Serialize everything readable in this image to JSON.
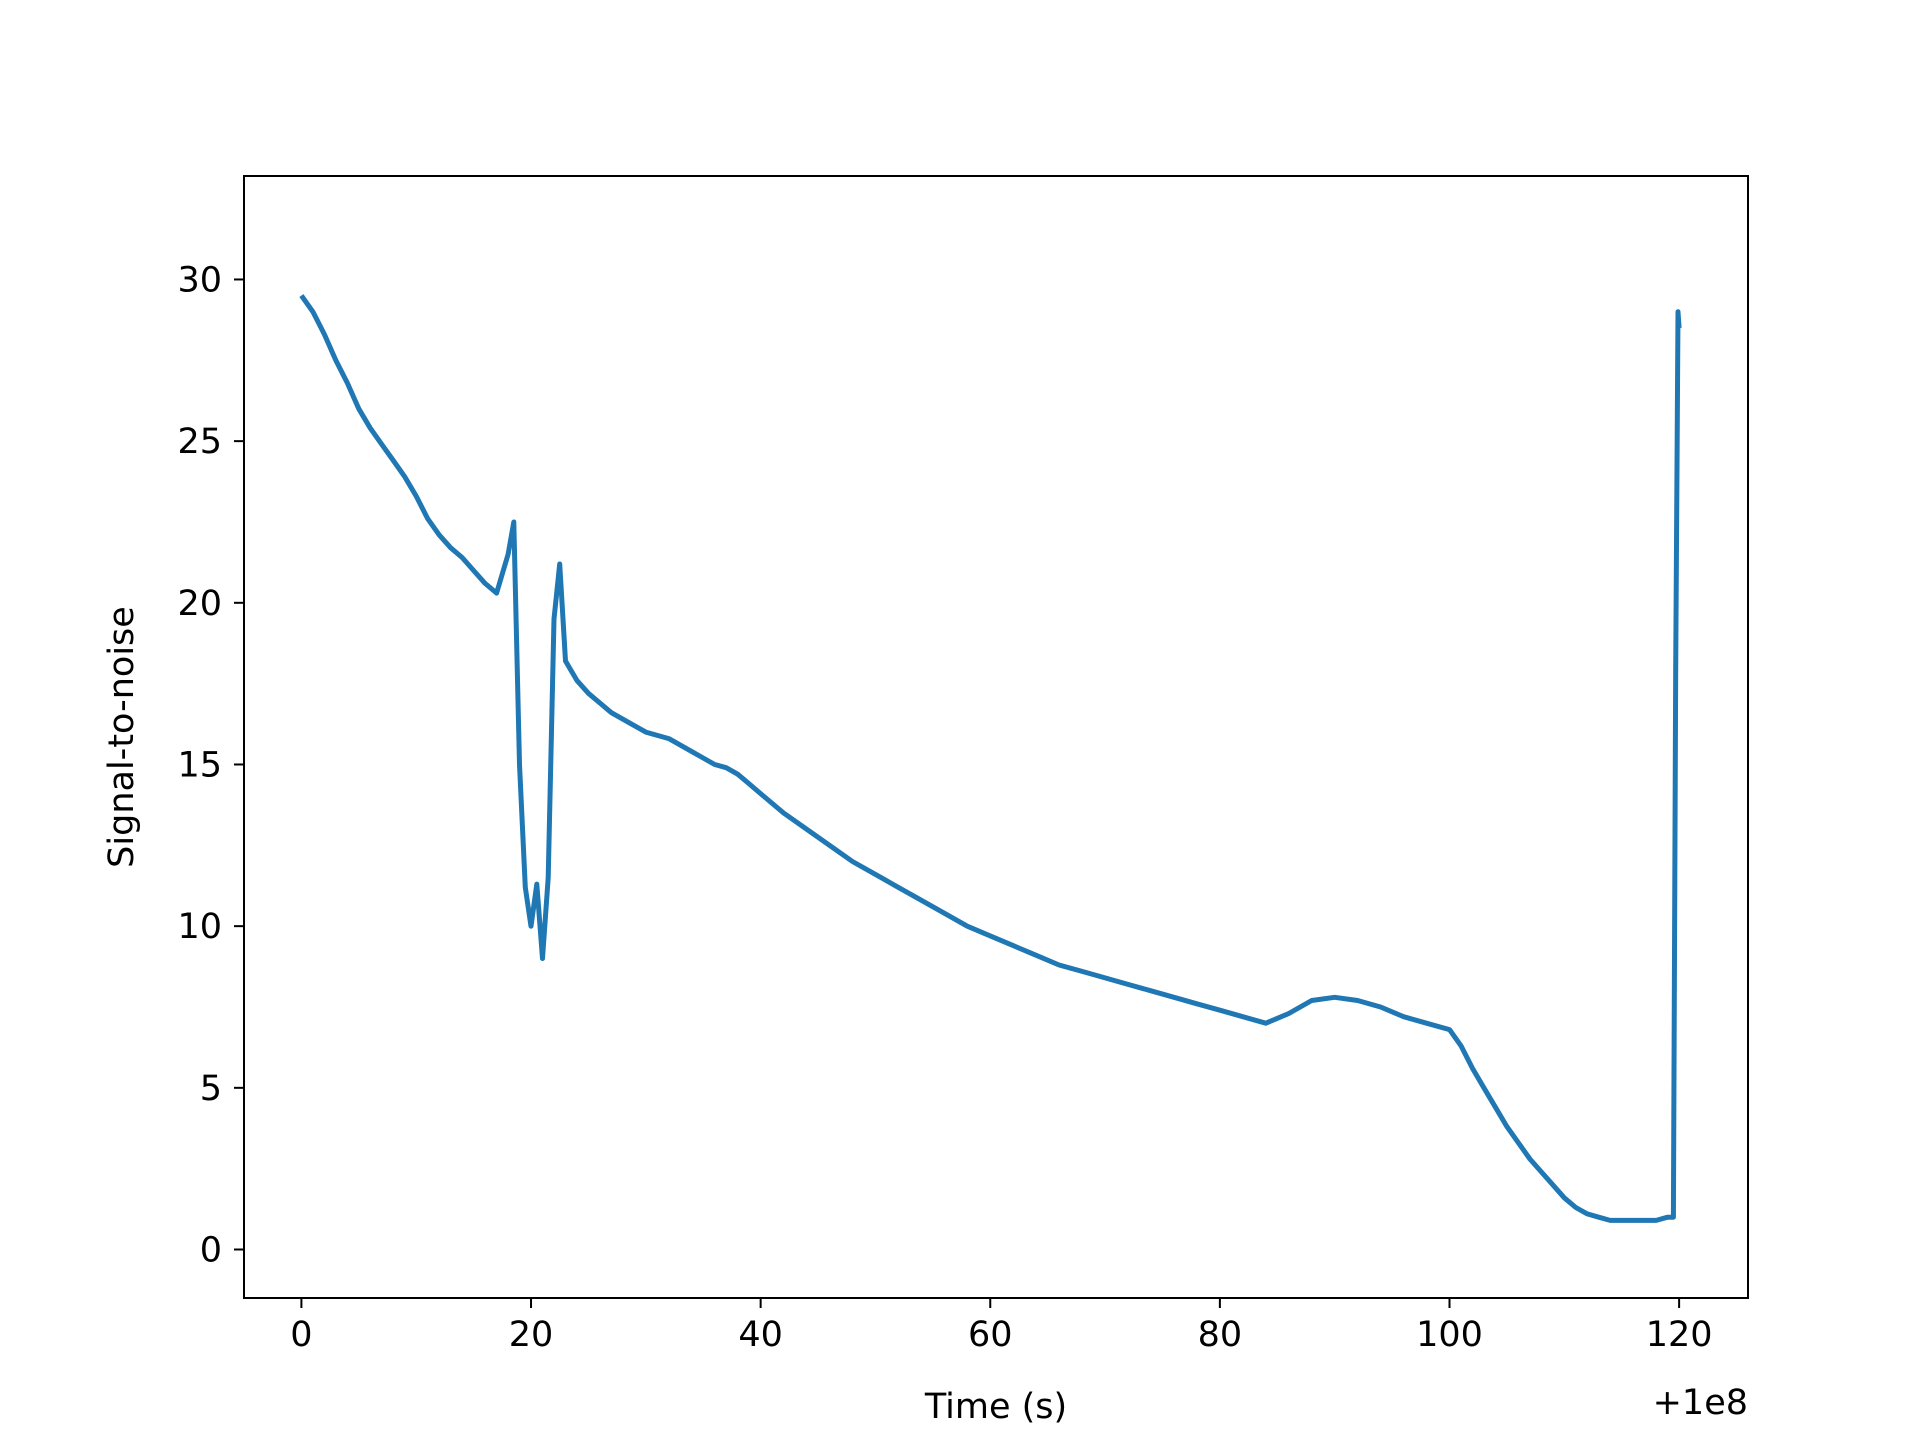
{
  "chart_data": {
    "type": "line",
    "title": "",
    "xlabel": "Time (s)",
    "ylabel": "Signal-to-noise",
    "x_offset_label": "+1e8",
    "xlim": [
      -5,
      126
    ],
    "ylim": [
      -1.5,
      33.2
    ],
    "x_ticks": [
      0,
      20,
      40,
      60,
      80,
      100,
      120
    ],
    "x_tick_labels": [
      "0",
      "20",
      "40",
      "60",
      "80",
      "100",
      "120"
    ],
    "y_ticks": [
      0,
      5,
      10,
      15,
      20,
      25,
      30
    ],
    "y_tick_labels": [
      "0",
      "5",
      "10",
      "15",
      "20",
      "25",
      "30"
    ],
    "grid": false,
    "legend": "none",
    "series": [
      {
        "color": "#1f77b4",
        "x": [
          0,
          1,
          2,
          3,
          4,
          5,
          6,
          7,
          8,
          9,
          10,
          11,
          12,
          13,
          14,
          15,
          16,
          17,
          18,
          18.5,
          19,
          19.5,
          20,
          20.5,
          21,
          21.5,
          22,
          22.5,
          23,
          24,
          25,
          26,
          27,
          28,
          29,
          30,
          31,
          32,
          33,
          34,
          35,
          36,
          37,
          38,
          39,
          40,
          42,
          44,
          46,
          48,
          50,
          52,
          54,
          56,
          58,
          60,
          62,
          64,
          66,
          68,
          70,
          72,
          74,
          76,
          78,
          80,
          82,
          84,
          86,
          88,
          90,
          92,
          94,
          96,
          98,
          100,
          101,
          102,
          103,
          104,
          105,
          106,
          107,
          108,
          109,
          110,
          111,
          112,
          113,
          114,
          115,
          116,
          117,
          118,
          119,
          119.5,
          119.7,
          119.9,
          120
        ],
        "y": [
          29.5,
          29.0,
          28.3,
          27.5,
          26.8,
          26.0,
          25.4,
          24.9,
          24.4,
          23.9,
          23.3,
          22.6,
          22.1,
          21.7,
          21.4,
          21.0,
          20.6,
          20.3,
          21.5,
          22.5,
          15.0,
          11.2,
          10.0,
          11.3,
          9.0,
          11.5,
          19.5,
          21.2,
          18.2,
          17.6,
          17.2,
          16.9,
          16.6,
          16.4,
          16.2,
          16.0,
          15.9,
          15.8,
          15.6,
          15.4,
          15.2,
          15.0,
          14.9,
          14.7,
          14.4,
          14.1,
          13.5,
          13.0,
          12.5,
          12.0,
          11.6,
          11.2,
          10.8,
          10.4,
          10.0,
          9.7,
          9.4,
          9.1,
          8.8,
          8.6,
          8.4,
          8.2,
          8.0,
          7.8,
          7.6,
          7.4,
          7.2,
          7.0,
          7.3,
          7.7,
          7.8,
          7.7,
          7.5,
          7.2,
          7.0,
          6.8,
          6.3,
          5.6,
          5.0,
          4.4,
          3.8,
          3.3,
          2.8,
          2.4,
          2.0,
          1.6,
          1.3,
          1.1,
          1.0,
          0.9,
          0.9,
          0.9,
          0.9,
          0.9,
          1.0,
          1.0,
          18.0,
          29.0,
          28.5
        ]
      }
    ]
  }
}
